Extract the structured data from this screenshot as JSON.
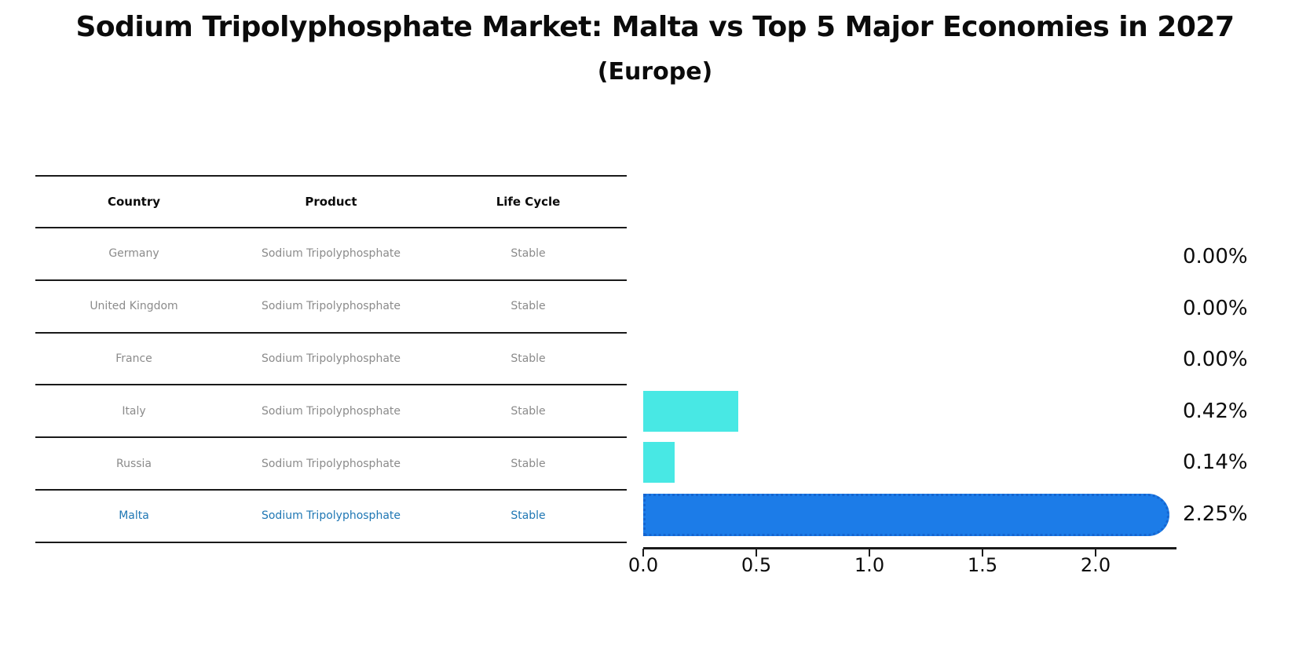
{
  "title": "Sodium Tripolyphosphate Market: Malta vs Top 5 Major Economies in 2027",
  "subtitle": "(Europe)",
  "table": {
    "headers": [
      "Country",
      "Product",
      "Life Cycle"
    ],
    "rows": [
      {
        "country": "Germany",
        "product": "Sodium Tripolyphosphate",
        "life_cycle": "Stable"
      },
      {
        "country": "United Kingdom",
        "product": "Sodium Tripolyphosphate",
        "life_cycle": "Stable"
      },
      {
        "country": "France",
        "product": "Sodium Tripolyphosphate",
        "life_cycle": "Stable"
      },
      {
        "country": "Italy",
        "product": "Sodium Tripolyphosphate",
        "life_cycle": "Stable"
      },
      {
        "country": "Russia",
        "product": "Sodium Tripolyphosphate",
        "life_cycle": "Stable"
      },
      {
        "country": "Malta",
        "product": "Sodium Tripolyphosphate",
        "life_cycle": "Stable"
      }
    ],
    "highlight_row": "Malta"
  },
  "chart_data": {
    "type": "bar",
    "orientation": "horizontal",
    "title": "Sodium Tripolyphosphate Market: Malta vs Top 5 Major Economies in 2027",
    "subtitle": "(Europe)",
    "categories": [
      "Germany",
      "United Kingdom",
      "France",
      "Italy",
      "Russia",
      "Malta"
    ],
    "values": [
      0.0,
      0.0,
      0.0,
      0.42,
      0.14,
      2.25
    ],
    "value_labels": [
      "0.00%",
      "0.00%",
      "0.00%",
      "0.42%",
      "0.14%",
      "2.25%"
    ],
    "unit": "percent",
    "x_tick_labels": [
      "0.0",
      "0.5",
      "1.0",
      "1.5",
      "2.0"
    ],
    "x_tick_values": [
      0.0,
      0.5,
      1.0,
      1.5,
      2.0
    ],
    "xlim": [
      0,
      2.35
    ],
    "grid": false,
    "legend": false,
    "highlight_index": 5,
    "bar_color_default": "#48e8e4",
    "bar_color_highlight": "#1c7ce8",
    "highlight_border_color": "#1565d0"
  },
  "colors": {
    "background": "#ffffff",
    "header_text": "#0b0b0b",
    "row_text": "#8b8b8b",
    "highlight_text": "#1f77b4",
    "axis": "#1a1a1a"
  }
}
